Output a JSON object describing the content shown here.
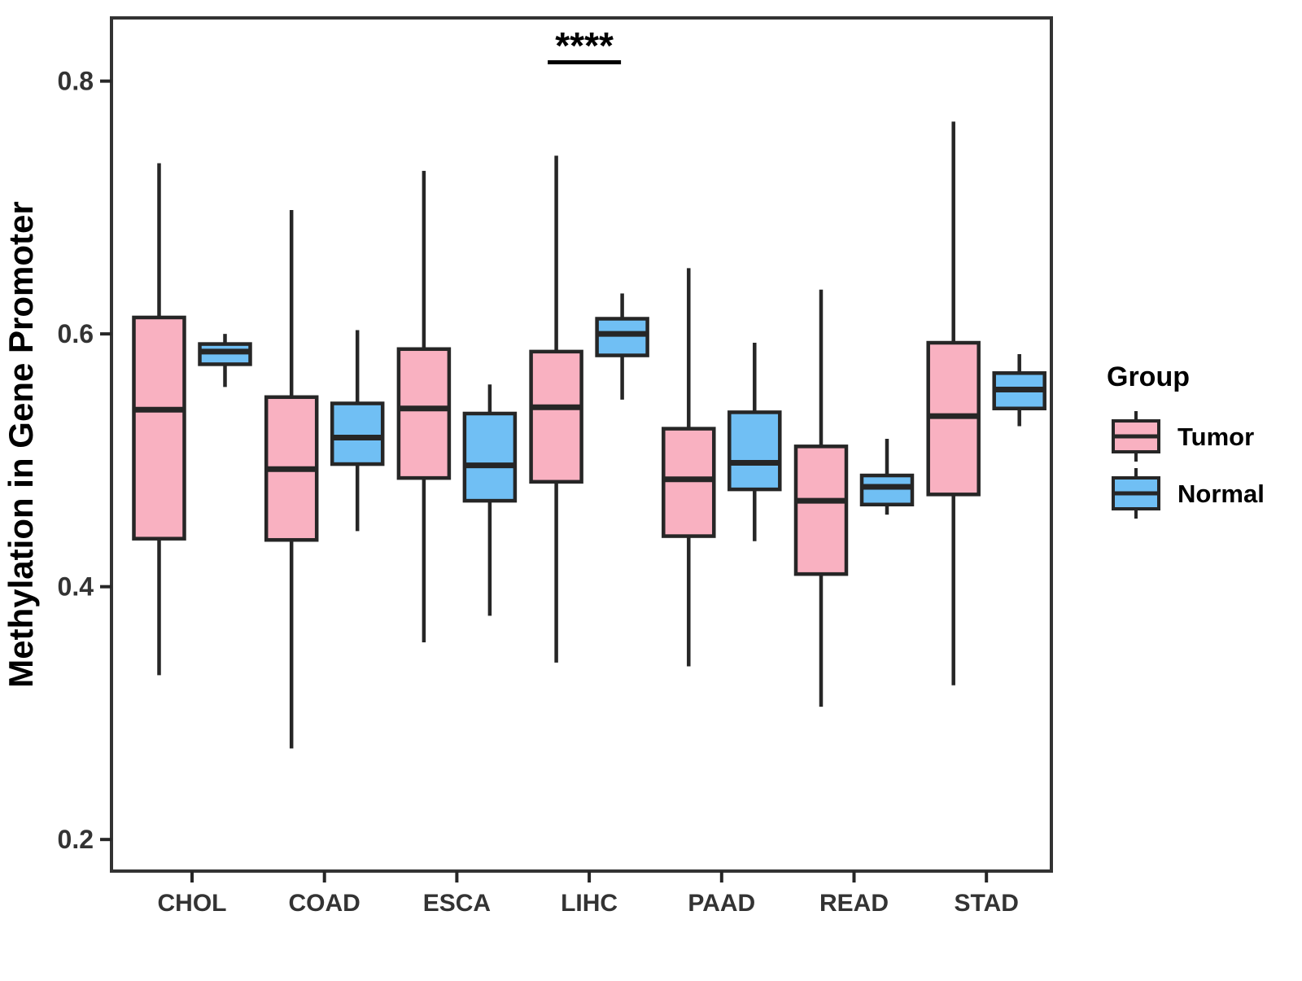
{
  "chart_data": {
    "type": "boxplot",
    "title": "",
    "xlabel": "",
    "ylabel": "Methylation in Gene Promoter",
    "legend_title": "Group",
    "legend_position": "right",
    "grid": false,
    "categories": [
      "CHOL",
      "COAD",
      "ESCA",
      "LIHC",
      "PAAD",
      "READ",
      "STAD"
    ],
    "y_ticks": [
      0.8,
      0.6,
      0.4,
      0.2
    ],
    "ylim": [
      0.175,
      0.85
    ],
    "significance": {
      "label": "****",
      "category": "LIHC"
    },
    "series": [
      {
        "name": "Tumor",
        "color": "#F9B1C1",
        "stats": [
          {
            "category": "CHOL",
            "min": 0.33,
            "q1": 0.438,
            "median": 0.54,
            "q3": 0.613,
            "max": 0.735
          },
          {
            "category": "COAD",
            "min": 0.272,
            "q1": 0.437,
            "median": 0.493,
            "q3": 0.55,
            "max": 0.698
          },
          {
            "category": "ESCA",
            "min": 0.356,
            "q1": 0.486,
            "median": 0.541,
            "q3": 0.588,
            "max": 0.729
          },
          {
            "category": "LIHC",
            "min": 0.34,
            "q1": 0.483,
            "median": 0.542,
            "q3": 0.586,
            "max": 0.741
          },
          {
            "category": "PAAD",
            "min": 0.337,
            "q1": 0.44,
            "median": 0.485,
            "q3": 0.525,
            "max": 0.652
          },
          {
            "category": "READ",
            "min": 0.305,
            "q1": 0.41,
            "median": 0.468,
            "q3": 0.511,
            "max": 0.635
          },
          {
            "category": "STAD",
            "min": 0.322,
            "q1": 0.473,
            "median": 0.535,
            "q3": 0.593,
            "max": 0.768
          }
        ]
      },
      {
        "name": "Normal",
        "color": "#70BFF4",
        "stats": [
          {
            "category": "CHOL",
            "min": 0.558,
            "q1": 0.576,
            "median": 0.586,
            "q3": 0.592,
            "max": 0.6
          },
          {
            "category": "COAD",
            "min": 0.444,
            "q1": 0.497,
            "median": 0.518,
            "q3": 0.545,
            "max": 0.603
          },
          {
            "category": "ESCA",
            "min": 0.377,
            "q1": 0.468,
            "median": 0.496,
            "q3": 0.537,
            "max": 0.56
          },
          {
            "category": "LIHC",
            "min": 0.548,
            "q1": 0.583,
            "median": 0.6,
            "q3": 0.612,
            "max": 0.632
          },
          {
            "category": "PAAD",
            "min": 0.436,
            "q1": 0.477,
            "median": 0.498,
            "q3": 0.538,
            "max": 0.593
          },
          {
            "category": "READ",
            "min": 0.457,
            "q1": 0.465,
            "median": 0.479,
            "q3": 0.488,
            "max": 0.517
          },
          {
            "category": "STAD",
            "min": 0.527,
            "q1": 0.541,
            "median": 0.556,
            "q3": 0.569,
            "max": 0.584
          }
        ]
      }
    ],
    "colors": {
      "box_line": "#262626",
      "panel_border": "#333333",
      "axis_text": "#333333"
    }
  }
}
